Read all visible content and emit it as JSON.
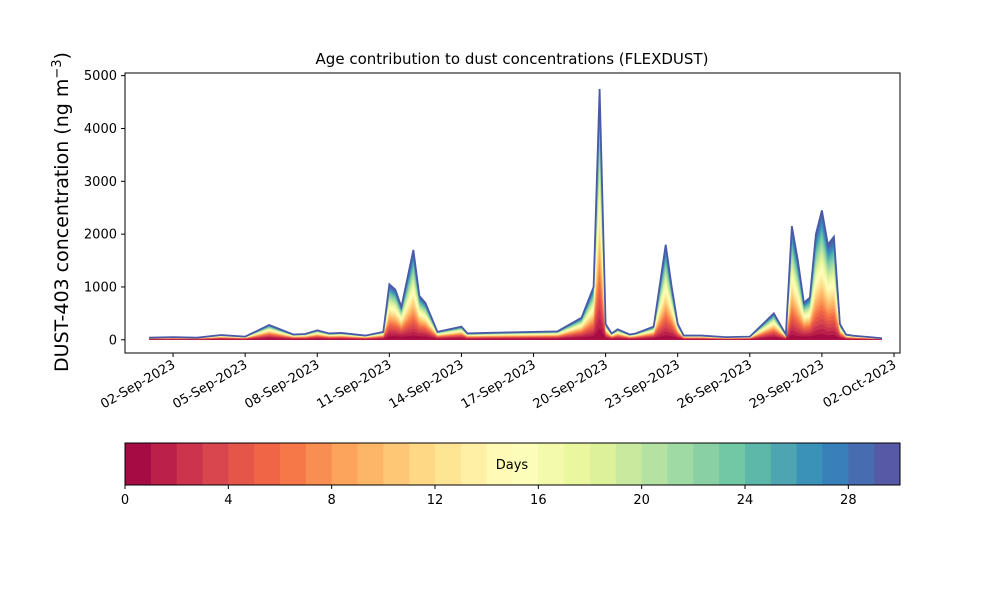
{
  "chart_data": {
    "type": "area",
    "stacked": true,
    "title": "Age contribution to dust concentrations (FLEXDUST)",
    "ylabel": "DUST-403 concentration (ng m",
    "ylabel_sup": "−3",
    "ylabel_end": ")",
    "xlabel": "",
    "ylim": [
      -250,
      5050
    ],
    "yticks": [
      0,
      1000,
      2000,
      3000,
      4000,
      5000
    ],
    "xlim": [
      "2023-08-31",
      "2023-10-02T06:00"
    ],
    "xticks": [
      "02-Sep-2023",
      "05-Sep-2023",
      "08-Sep-2023",
      "11-Sep-2023",
      "14-Sep-2023",
      "17-Sep-2023",
      "20-Sep-2023",
      "23-Sep-2023",
      "26-Sep-2023",
      "29-Sep-2023",
      "02-Oct-2023"
    ],
    "grid": false,
    "legend": "none",
    "colorbar": {
      "label": "Days",
      "range": [
        0,
        30
      ],
      "ticks": [
        "0",
        "4",
        "8",
        "12",
        "16",
        "20",
        "24",
        "28"
      ],
      "colormap": "Spectral",
      "bins": 30
    },
    "series_count": 30,
    "series_note_colors": "Spectral colormap, age 0 (red) to 29 (blue)",
    "x": [
      "2023-09-01",
      "2023-09-02",
      "2023-09-03",
      "2023-09-04",
      "2023-09-05",
      "2023-09-06",
      "2023-09-07",
      "2023-09-07T12:00",
      "2023-09-08",
      "2023-09-08T12:00",
      "2023-09-09",
      "2023-09-10",
      "2023-09-10T18:00",
      "2023-09-11",
      "2023-09-11T06:00",
      "2023-09-11T12:00",
      "2023-09-12",
      "2023-09-12T06:00",
      "2023-09-12T12:00",
      "2023-09-13",
      "2023-09-14",
      "2023-09-14T06:00",
      "2023-09-15",
      "2023-09-16",
      "2023-09-17",
      "2023-09-18",
      "2023-09-19",
      "2023-09-19T12:00",
      "2023-09-19T18:00",
      "2023-09-20",
      "2023-09-20T06:00",
      "2023-09-20T12:00",
      "2023-09-21",
      "2023-09-21T06:00",
      "2023-09-22",
      "2023-09-22T12:00",
      "2023-09-22T18:00",
      "2023-09-23",
      "2023-09-23T06:00",
      "2023-09-24",
      "2023-09-25",
      "2023-09-26",
      "2023-09-27",
      "2023-09-27T12:00",
      "2023-09-27T18:00",
      "2023-09-28",
      "2023-09-28T06:00",
      "2023-09-28T12:00",
      "2023-09-28T18:00",
      "2023-09-29",
      "2023-09-29T06:00",
      "2023-09-29T12:00",
      "2023-09-29T18:00",
      "2023-09-30",
      "2023-09-30T06:00",
      "2023-09-30T12:00",
      "2023-10-01",
      "2023-10-01T12:00"
    ],
    "total": [
      40,
      50,
      40,
      90,
      60,
      280,
      100,
      110,
      180,
      120,
      130,
      80,
      150,
      1050,
      950,
      620,
      1700,
      830,
      700,
      150,
      250,
      120,
      130,
      140,
      150,
      160,
      420,
      1000,
      4750,
      300,
      120,
      200,
      100,
      120,
      250,
      1800,
      1000,
      300,
      80,
      80,
      50,
      60,
      500,
      100,
      2150,
      1500,
      700,
      800,
      2000,
      2450,
      1800,
      1950,
      300,
      100,
      80,
      70,
      50,
      30
    ]
  }
}
